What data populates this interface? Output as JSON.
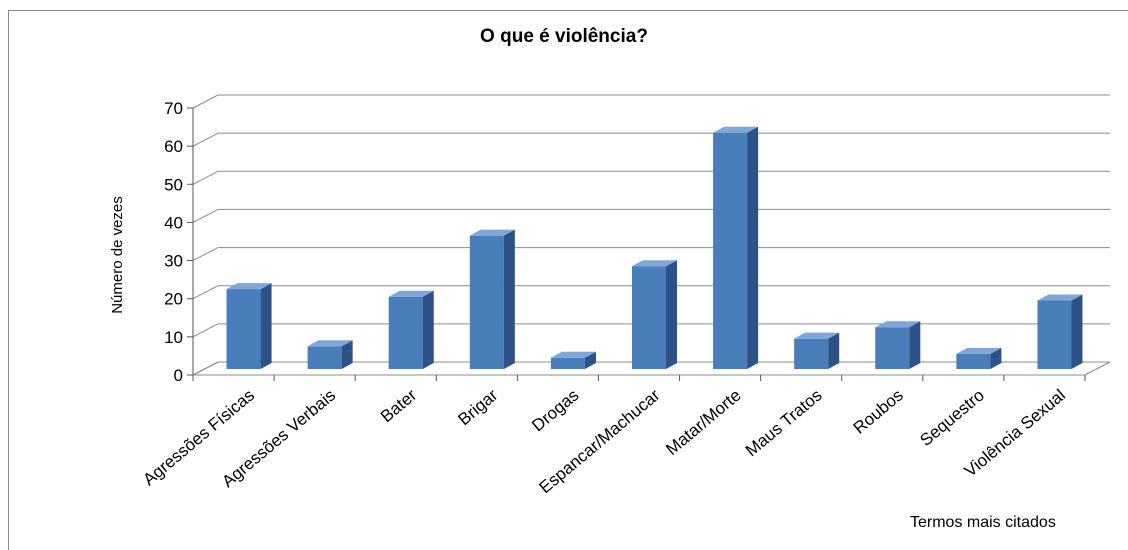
{
  "chart_data": {
    "type": "bar",
    "title": "O que é violência?",
    "ylabel": "Número de vezes",
    "xlabel": "Termos mais citados",
    "ylim": [
      0,
      70
    ],
    "yticks": [
      "0",
      "10",
      "20",
      "30",
      "40",
      "50",
      "60",
      "70"
    ],
    "grid": true,
    "categories": [
      "Agressões Físicas",
      "Agressões Verbais",
      "Bater",
      "Brigar",
      "Drogas",
      "Espancar/Machucar",
      "Matar/Morte",
      "Maus Tratos",
      "Roubos",
      "Sequestro",
      "Violência Sexual"
    ],
    "values": [
      22,
      7,
      20,
      36,
      4,
      28,
      63,
      9,
      12,
      5,
      19
    ],
    "colors": {
      "bar_front": "#4a7ebb",
      "bar_side": "#2d5286",
      "bar_top": "#7ea6d8",
      "grid": "#8c8c8c"
    }
  }
}
